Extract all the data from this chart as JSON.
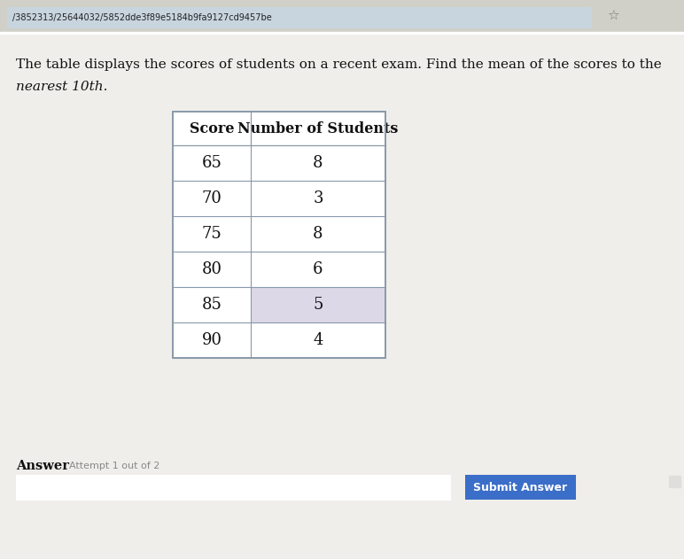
{
  "title_line1": "The table displays the scores of students on a recent exam. Find the mean of the scores to the",
  "title_line2": "nearest 10th.",
  "browser_url": "/3852313/25644032/5852dde3f89e5184b9fa9127cd9457be",
  "col_headers": [
    "Score",
    "Number of Students"
  ],
  "rows": [
    [
      65,
      8
    ],
    [
      70,
      3
    ],
    [
      75,
      8
    ],
    [
      80,
      6
    ],
    [
      85,
      5
    ],
    [
      90,
      4
    ]
  ],
  "answer_label": "Answer",
  "attempt_label": "Attempt 1 out of 2",
  "submit_button_text": "Submit Answer",
  "page_bg": "#e8e6e0",
  "content_bg": "#f0eeea",
  "table_bg": "#ffffff",
  "header_bg": "#ffffff",
  "border_color": "#8899aa",
  "text_color": "#111111",
  "url_bar_color": "#b8c8d8",
  "url_text_color": "#222222",
  "input_box_color": "#ffffff",
  "submit_btn_color": "#3a6ec8",
  "submit_btn_text_color": "#ffffff",
  "row85_highlight": "#ddd8e8",
  "answer_text_color": "#333333",
  "attempt_text_color": "#888888",
  "top_bar_color": "#d0cfc8",
  "url_rounded_color": "#c8d4de"
}
